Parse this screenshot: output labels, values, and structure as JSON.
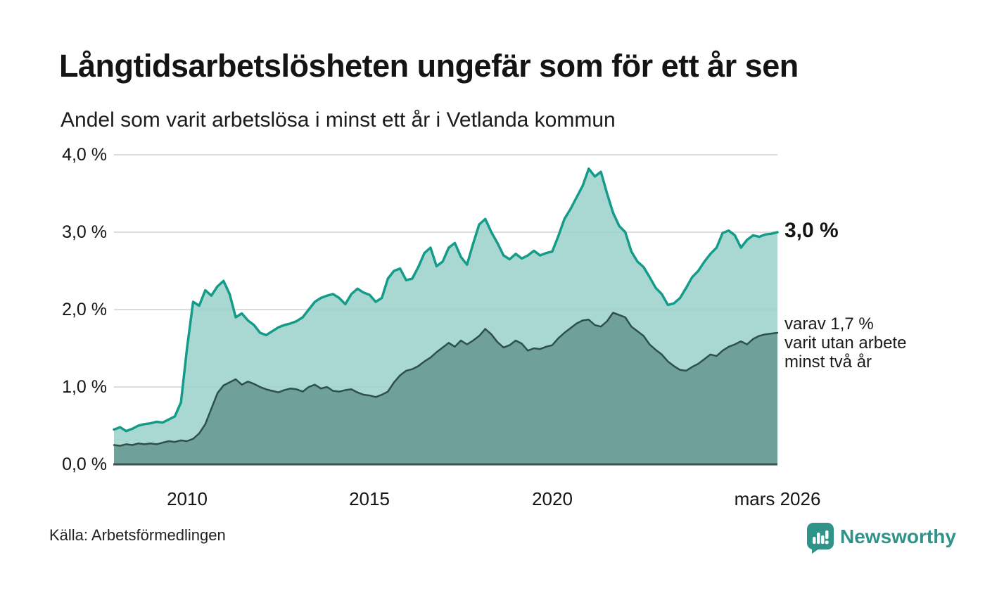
{
  "header": {
    "title": "Långtidsarbetslösheten ungefär som för ett år sen",
    "subtitle": "Andel som varit arbetslösa i minst ett år i Vetlanda kommun"
  },
  "chart_data": {
    "type": "area",
    "title": "Långtidsarbetslösheten ungefär som för ett år sen",
    "subtitle": "Andel som varit arbetslösa i minst ett år i Vetlanda kommun",
    "x_start": 2008.0,
    "x_step": 0.166667,
    "xlabel": "",
    "ylabel": "",
    "ylim": [
      0,
      4
    ],
    "grid": "horizontal",
    "legend_position": "none",
    "y_ticks": [
      {
        "label": "0,0 %",
        "value": 0
      },
      {
        "label": "1,0 %",
        "value": 1
      },
      {
        "label": "2,0 %",
        "value": 2
      },
      {
        "label": "3,0 %",
        "value": 3
      },
      {
        "label": "4,0 %",
        "value": 4
      }
    ],
    "x_ticks": [
      {
        "label": "2010",
        "year": 2010
      },
      {
        "label": "2015",
        "year": 2015
      },
      {
        "label": "2020",
        "year": 2020
      },
      {
        "label": "mars 2026",
        "year": 2026.1667
      }
    ],
    "series": [
      {
        "id": "arbetslosa-minst-ett-ar",
        "label": "arbetslösa i minst ett år",
        "line_color": "#149b89",
        "fill_color": "#9dd3cc",
        "fill_opacity": 0.88,
        "line_width": 3.5,
        "end_value_label": "3,0 %",
        "values": [
          0.45,
          0.48,
          0.43,
          0.46,
          0.5,
          0.52,
          0.53,
          0.55,
          0.54,
          0.58,
          0.62,
          0.8,
          1.5,
          2.1,
          2.05,
          2.25,
          2.18,
          2.3,
          2.37,
          2.2,
          1.9,
          1.95,
          1.86,
          1.8,
          1.7,
          1.67,
          1.72,
          1.77,
          1.8,
          1.82,
          1.85,
          1.9,
          2.0,
          2.1,
          2.15,
          2.18,
          2.2,
          2.15,
          2.07,
          2.2,
          2.27,
          2.22,
          2.19,
          2.1,
          2.15,
          2.4,
          2.5,
          2.53,
          2.38,
          2.4,
          2.55,
          2.73,
          2.8,
          2.56,
          2.62,
          2.8,
          2.86,
          2.68,
          2.58,
          2.85,
          3.1,
          3.17,
          3.0,
          2.86,
          2.7,
          2.65,
          2.72,
          2.66,
          2.7,
          2.76,
          2.7,
          2.73,
          2.75,
          2.95,
          3.17,
          3.3,
          3.45,
          3.6,
          3.82,
          3.72,
          3.78,
          3.5,
          3.25,
          3.08,
          3.0,
          2.75,
          2.62,
          2.55,
          2.42,
          2.28,
          2.2,
          2.06,
          2.08,
          2.15,
          2.28,
          2.42,
          2.5,
          2.62,
          2.72,
          2.8,
          2.99,
          3.02,
          2.96,
          2.8,
          2.9,
          2.96,
          2.94,
          2.97,
          2.98,
          3.0
        ]
      },
      {
        "id": "utan-arbete-minst-tva-ar",
        "label": "varit utan arbete minst två år",
        "line_color": "#2f4f49",
        "fill_color": "#6fa099",
        "fill_opacity": 1,
        "line_width": 2.5,
        "end_value_label": "1,7 %",
        "values": [
          0.25,
          0.24,
          0.26,
          0.25,
          0.27,
          0.26,
          0.27,
          0.26,
          0.28,
          0.3,
          0.29,
          0.31,
          0.3,
          0.33,
          0.4,
          0.52,
          0.72,
          0.92,
          1.02,
          1.06,
          1.1,
          1.03,
          1.07,
          1.04,
          1.0,
          0.97,
          0.95,
          0.93,
          0.96,
          0.98,
          0.97,
          0.94,
          1.0,
          1.03,
          0.98,
          1.0,
          0.95,
          0.94,
          0.96,
          0.97,
          0.93,
          0.9,
          0.89,
          0.87,
          0.9,
          0.94,
          1.06,
          1.15,
          1.21,
          1.23,
          1.27,
          1.33,
          1.38,
          1.45,
          1.51,
          1.57,
          1.52,
          1.6,
          1.55,
          1.6,
          1.66,
          1.75,
          1.68,
          1.58,
          1.51,
          1.54,
          1.6,
          1.56,
          1.47,
          1.5,
          1.49,
          1.52,
          1.54,
          1.63,
          1.7,
          1.76,
          1.82,
          1.86,
          1.87,
          1.8,
          1.78,
          1.85,
          1.96,
          1.93,
          1.9,
          1.78,
          1.72,
          1.66,
          1.55,
          1.48,
          1.42,
          1.33,
          1.27,
          1.22,
          1.21,
          1.26,
          1.3,
          1.36,
          1.42,
          1.4,
          1.47,
          1.52,
          1.55,
          1.59,
          1.55,
          1.62,
          1.66,
          1.68,
          1.69,
          1.7
        ]
      }
    ],
    "annotations": {
      "total_end": "3,0 %",
      "two_year_end": "varav 1,7 %\nvarit utan arbete\nminst två år"
    },
    "colors": {
      "grid": "#dcdcdc",
      "axis": "#3f514c",
      "background": "#ffffff",
      "text": "#111111"
    }
  },
  "footer": {
    "source": "Källa: Arbetsförmedlingen",
    "brand": "Newsworthy",
    "brand_color": "#2f938a"
  }
}
